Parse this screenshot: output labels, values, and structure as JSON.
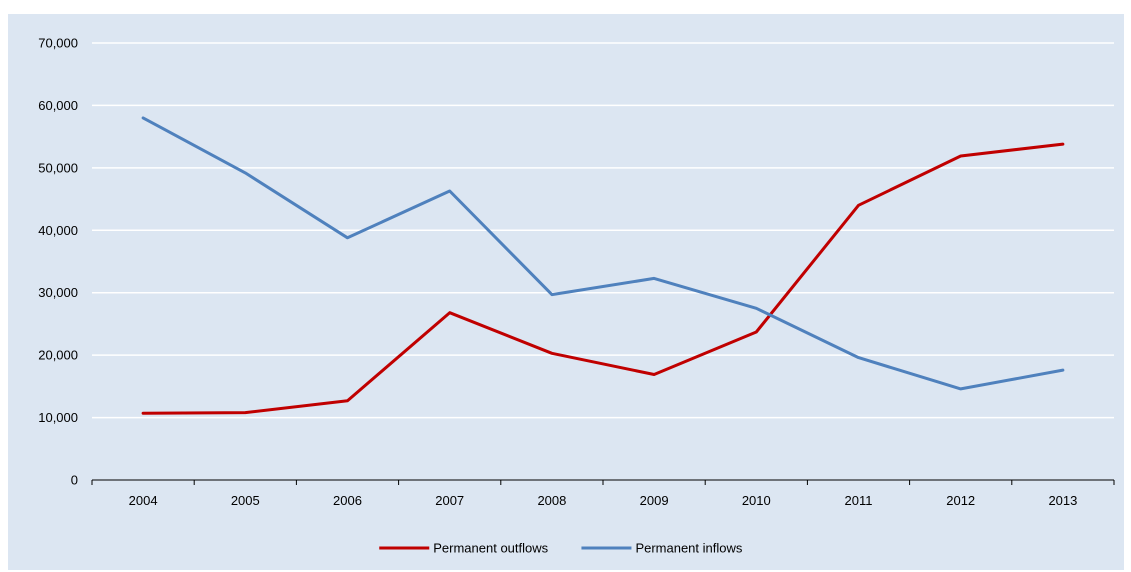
{
  "chart_data": {
    "type": "line",
    "title": "",
    "xlabel": "",
    "ylabel": "",
    "categories": [
      "2004",
      "2005",
      "2006",
      "2007",
      "2008",
      "2009",
      "2010",
      "2011",
      "2012",
      "2013"
    ],
    "ylim": [
      0,
      70000
    ],
    "yticks": [
      0,
      10000,
      20000,
      30000,
      40000,
      50000,
      60000,
      70000
    ],
    "ytick_labels": [
      "0",
      "10,000",
      "20,000",
      "30,000",
      "40,000",
      "50,000",
      "60,000",
      "70,000"
    ],
    "grid": "horizontal",
    "legend_position": "bottom-center",
    "series": [
      {
        "name": "Permanent outflows",
        "color": "#c00000",
        "values": [
          10700,
          10800,
          12700,
          26800,
          20300,
          16900,
          23700,
          44000,
          51900,
          53800
        ]
      },
      {
        "name": "Permanent inflows",
        "color": "#4f81bd",
        "values": [
          58000,
          49200,
          38800,
          46300,
          29700,
          32300,
          27500,
          19600,
          14600,
          17600
        ]
      }
    ]
  },
  "colors": {
    "background": "#dce6f2",
    "gridline": "#ffffff",
    "axis": "#000000"
  }
}
